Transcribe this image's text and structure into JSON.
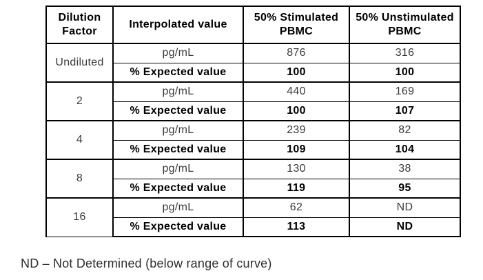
{
  "table": {
    "columns": [
      "Dilution Factor",
      "Interpolated value",
      "50% Stimulated PBMC",
      "50% Unstimulated PBMC"
    ],
    "row_labels": {
      "pg": "pg/mL",
      "expected": "% Expected value"
    },
    "groups": [
      {
        "factor": "Undiluted",
        "pg_stim": "876",
        "pg_unstim": "316",
        "exp_stim": "100",
        "exp_unstim": "100"
      },
      {
        "factor": "2",
        "pg_stim": "440",
        "pg_unstim": "169",
        "exp_stim": "100",
        "exp_unstim": "107"
      },
      {
        "factor": "4",
        "pg_stim": "239",
        "pg_unstim": "82",
        "exp_stim": "109",
        "exp_unstim": "104"
      },
      {
        "factor": "8",
        "pg_stim": "130",
        "pg_unstim": "38",
        "exp_stim": "119",
        "exp_unstim": "95"
      },
      {
        "factor": "16",
        "pg_stim": "62",
        "pg_unstim": "ND",
        "exp_stim": "113",
        "exp_unstim": "ND"
      }
    ]
  },
  "footnote": "ND – Not Determined (below range of curve)",
  "colors": {
    "background": "#ffffff",
    "border": "#000000",
    "text_regular": "#3a3a3a",
    "text_bold": "#000000"
  }
}
